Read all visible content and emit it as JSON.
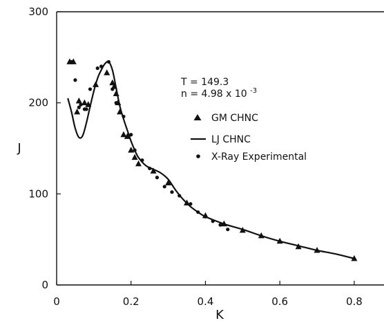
{
  "chart_data": {
    "type": "scatter",
    "title": "",
    "xlabel": "K",
    "ylabel": "J",
    "xlim": [
      0,
      0.88
    ],
    "ylim": [
      0,
      300
    ],
    "x_ticks": [
      0,
      0.2,
      0.4,
      0.6,
      0.8
    ],
    "x_tick_labels": [
      "0",
      "0.2",
      "0.4",
      "0.6",
      "0.8"
    ],
    "y_ticks": [
      0,
      100,
      200,
      300
    ],
    "y_tick_labels": [
      "0",
      "100",
      "200",
      "300"
    ],
    "grid": false,
    "legend_position": "upper-right",
    "annotations": {
      "temperature": "T = 149.3",
      "density_base": "n = 4.98 x 10",
      "density_exp": "-3"
    },
    "series": [
      {
        "name": "GM CHNC",
        "marker": "triangle",
        "x": [
          0.035,
          0.045,
          0.055,
          0.06,
          0.075,
          0.085,
          0.105,
          0.135,
          0.15,
          0.155,
          0.16,
          0.165,
          0.17,
          0.18,
          0.19,
          0.2,
          0.21,
          0.22,
          0.26,
          0.3,
          0.35,
          0.4,
          0.45,
          0.5,
          0.55,
          0.6,
          0.65,
          0.7,
          0.8
        ],
        "y": [
          245,
          245,
          190,
          202,
          200,
          198,
          220,
          233,
          222,
          218,
          210,
          200,
          190,
          165,
          163,
          148,
          140,
          133,
          125,
          112,
          90,
          76,
          67,
          60,
          54,
          48,
          42,
          38,
          29
        ]
      },
      {
        "name": "LJ CHNC",
        "marker": "line",
        "x": [
          0.03,
          0.04,
          0.05,
          0.06,
          0.07,
          0.08,
          0.09,
          0.1,
          0.11,
          0.12,
          0.13,
          0.14,
          0.15,
          0.16,
          0.17,
          0.18,
          0.19,
          0.2,
          0.21,
          0.22,
          0.24,
          0.26,
          0.28,
          0.3,
          0.32,
          0.34,
          0.36,
          0.38,
          0.4,
          0.45,
          0.5,
          0.55,
          0.6,
          0.65,
          0.7,
          0.75,
          0.8
        ],
        "y": [
          205,
          190,
          172,
          162,
          164,
          178,
          196,
          213,
          227,
          236,
          243,
          245,
          236,
          216,
          196,
          182,
          170,
          158,
          148,
          140,
          131,
          127,
          123,
          116,
          104,
          94,
          86,
          80,
          75,
          67,
          61,
          54,
          48,
          43,
          38,
          34,
          29
        ]
      },
      {
        "name": "X-Ray Experimental",
        "marker": "dot",
        "x": [
          0.04,
          0.05,
          0.06,
          0.065,
          0.075,
          0.08,
          0.09,
          0.11,
          0.12,
          0.14,
          0.15,
          0.16,
          0.18,
          0.2,
          0.21,
          0.23,
          0.25,
          0.27,
          0.29,
          0.31,
          0.33,
          0.36,
          0.38,
          0.4,
          0.42,
          0.44,
          0.46
        ],
        "y": [
          245,
          225,
          195,
          198,
          193,
          193,
          215,
          238,
          240,
          245,
          215,
          200,
          185,
          165,
          148,
          137,
          128,
          118,
          108,
          102,
          98,
          89,
          80,
          75,
          70,
          66,
          61
        ]
      }
    ]
  }
}
